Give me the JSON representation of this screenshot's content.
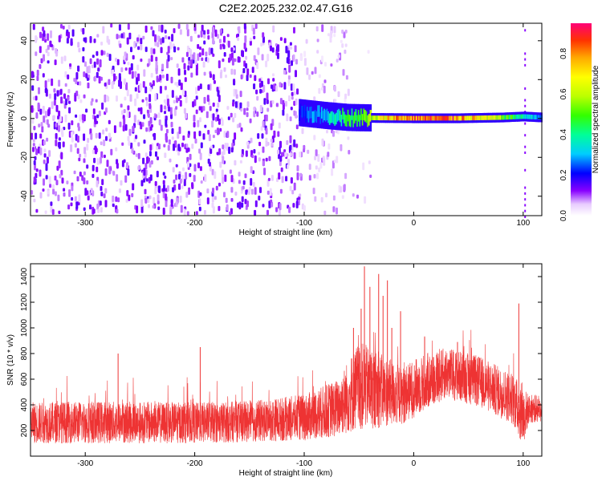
{
  "title": "C2E2.2025.232.02.47.G16",
  "chart_data": [
    {
      "type": "heatmap",
      "xlabel": "Height of straight line (km)",
      "ylabel": "Frequency (Hz)",
      "xlim": [
        -350,
        117
      ],
      "ylim": [
        -50,
        49
      ],
      "x_ticks": [
        -300,
        -200,
        -100,
        0,
        100
      ],
      "y_ticks": [
        -40,
        -20,
        0,
        20,
        40
      ],
      "colorbar": {
        "label": "Normalized spectral amplitude",
        "range": [
          0,
          0.95
        ],
        "ticks": [
          0,
          0.2,
          0.4,
          0.6,
          0.8
        ]
      },
      "signal_track": [
        {
          "x": -105,
          "f": 3,
          "amp": 0.25
        },
        {
          "x": -80,
          "f": 1.5,
          "amp": 0.35
        },
        {
          "x": -60,
          "f": 0.5,
          "amp": 0.5
        },
        {
          "x": -40,
          "f": 0.3,
          "amp": 0.6
        },
        {
          "x": -20,
          "f": 0.2,
          "amp": 0.85
        },
        {
          "x": 0,
          "f": 0.1,
          "amp": 0.9
        },
        {
          "x": 40,
          "f": 0.1,
          "amp": 0.9
        },
        {
          "x": 80,
          "f": 0.5,
          "amp": 0.6
        },
        {
          "x": 100,
          "f": 1.0,
          "amp": 0.4
        },
        {
          "x": 117,
          "f": 0.5,
          "amp": 0.3
        }
      ]
    },
    {
      "type": "line",
      "xlabel": "Height of straight line (km)",
      "ylabel": "SNR (10 * v/v)",
      "xlim": [
        -350,
        117
      ],
      "ylim": [
        0,
        1500
      ],
      "x_ticks": [
        -300,
        -200,
        -100,
        0,
        100
      ],
      "y_ticks": [
        200,
        400,
        600,
        800,
        1000,
        1200,
        1400
      ],
      "line_color": "#ee3333",
      "envelope": [
        {
          "x": -350,
          "low": 100,
          "high": 420
        },
        {
          "x": -300,
          "low": 100,
          "high": 430
        },
        {
          "x": -200,
          "low": 100,
          "high": 420
        },
        {
          "x": -150,
          "low": 110,
          "high": 430
        },
        {
          "x": -100,
          "low": 120,
          "high": 480
        },
        {
          "x": -70,
          "low": 150,
          "high": 600
        },
        {
          "x": -50,
          "low": 200,
          "high": 900
        },
        {
          "x": -30,
          "low": 220,
          "high": 800
        },
        {
          "x": -10,
          "low": 250,
          "high": 700
        },
        {
          "x": 10,
          "low": 350,
          "high": 800
        },
        {
          "x": 30,
          "low": 450,
          "high": 850
        },
        {
          "x": 60,
          "low": 380,
          "high": 780
        },
        {
          "x": 90,
          "low": 250,
          "high": 650
        },
        {
          "x": 100,
          "low": 80,
          "high": 550
        },
        {
          "x": 105,
          "low": 250,
          "high": 480
        },
        {
          "x": 117,
          "low": 270,
          "high": 480
        }
      ],
      "spikes": [
        {
          "x": -45,
          "y": 1480
        },
        {
          "x": -32,
          "y": 1420
        },
        {
          "x": -24,
          "y": 1370
        },
        {
          "x": -40,
          "y": 1320
        },
        {
          "x": -28,
          "y": 1250
        },
        {
          "x": -48,
          "y": 1150
        },
        {
          "x": -12,
          "y": 1130
        },
        {
          "x": -20,
          "y": 1000
        },
        {
          "x": 96,
          "y": 1190
        },
        {
          "x": -195,
          "y": 850
        },
        {
          "x": -270,
          "y": 800
        },
        {
          "x": -55,
          "y": 1000
        },
        {
          "x": 10,
          "y": 930
        },
        {
          "x": 40,
          "y": 890
        }
      ]
    }
  ]
}
